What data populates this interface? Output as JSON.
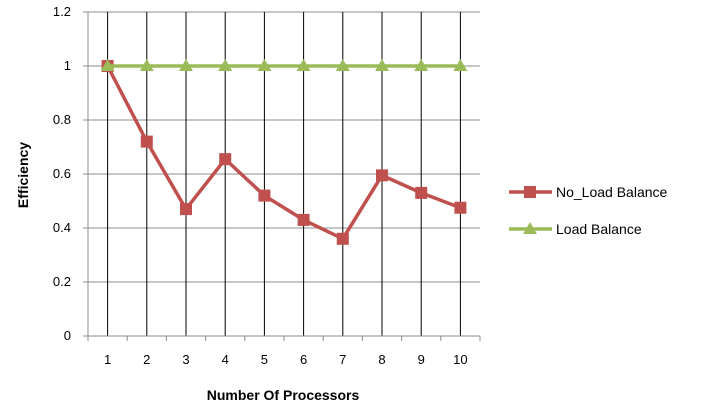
{
  "chart_data": {
    "type": "line",
    "title": "",
    "xlabel": "Number Of Processors",
    "ylabel": "Efficiency",
    "x": [
      1,
      2,
      3,
      4,
      5,
      6,
      7,
      8,
      9,
      10
    ],
    "x_tick_labels": [
      "1",
      "2",
      "3",
      "4",
      "5",
      "6",
      "7",
      "8",
      "9",
      "10"
    ],
    "y_tick_labels": [
      "0",
      "0.2",
      "0.4",
      "0.6",
      "0.8",
      "1",
      "1.2"
    ],
    "ylim": [
      0,
      1.2
    ],
    "grid": "vertical and horizontal",
    "legend_position": "right",
    "series": [
      {
        "name": "No_Load Balance",
        "color": "#c0504d",
        "marker": "square",
        "values": [
          1.0,
          0.72,
          0.47,
          0.655,
          0.52,
          0.43,
          0.36,
          0.595,
          0.53,
          0.475
        ]
      },
      {
        "name": "Load Balance",
        "color": "#9bbb59",
        "marker": "triangle",
        "values": [
          1.0,
          1.0,
          1.0,
          1.0,
          1.0,
          1.0,
          1.0,
          1.0,
          1.0,
          1.0
        ]
      }
    ]
  }
}
